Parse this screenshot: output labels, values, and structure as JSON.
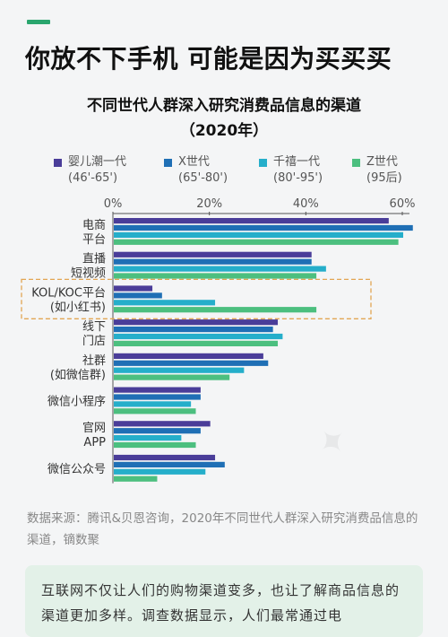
{
  "headline": "你放不下手机 可能是因为买买买",
  "chart_data": {
    "type": "bar",
    "orientation": "horizontal",
    "title": "不同世代人群深入研究消费品信息的渠道",
    "subtitle": "（2020年）",
    "xlim": [
      0,
      60
    ],
    "x_ticks": [
      "0%",
      "20%",
      "40%",
      "60%"
    ],
    "categories": [
      [
        "电商",
        "平台"
      ],
      [
        "直播",
        "短视频"
      ],
      [
        "KOL/KOC平台",
        "(如小红书)"
      ],
      [
        "线下",
        "门店"
      ],
      [
        "社群",
        "(如微信群)"
      ],
      [
        "微信小程序"
      ],
      [
        "官网",
        "APP"
      ],
      [
        "微信公众号"
      ]
    ],
    "series": [
      {
        "name": "婴儿潮一代",
        "range": "(46'-65')",
        "color": "#4a3d99",
        "values": [
          57,
          41,
          8,
          34,
          31,
          18,
          20,
          21
        ]
      },
      {
        "name": "X世代",
        "range": "(65'-80')",
        "color": "#1f6fb5",
        "values": [
          62,
          41,
          10,
          33,
          32,
          18,
          18,
          23
        ]
      },
      {
        "name": "千禧一代",
        "range": "(80'-95')",
        "color": "#25aeca",
        "values": [
          60,
          44,
          21,
          35,
          27,
          16,
          14,
          19
        ]
      },
      {
        "name": "Z世代",
        "range": "(95后)",
        "color": "#4cbf7f",
        "values": [
          59,
          42,
          42,
          34,
          24,
          17,
          17,
          9
        ]
      }
    ],
    "highlight_category_index": 2,
    "highlight_color": "#e2a553",
    "grid": false,
    "legend": "top"
  },
  "source": "数据来源：腾讯&贝恩咨询，2020年不同世代人群深入研究消费品信息的渠道，镝数聚",
  "callout": "互联网不仅让人们的购物渠道变多，也让了解商品信息的渠道更加多样。调查数据显示，人们最常通过电"
}
